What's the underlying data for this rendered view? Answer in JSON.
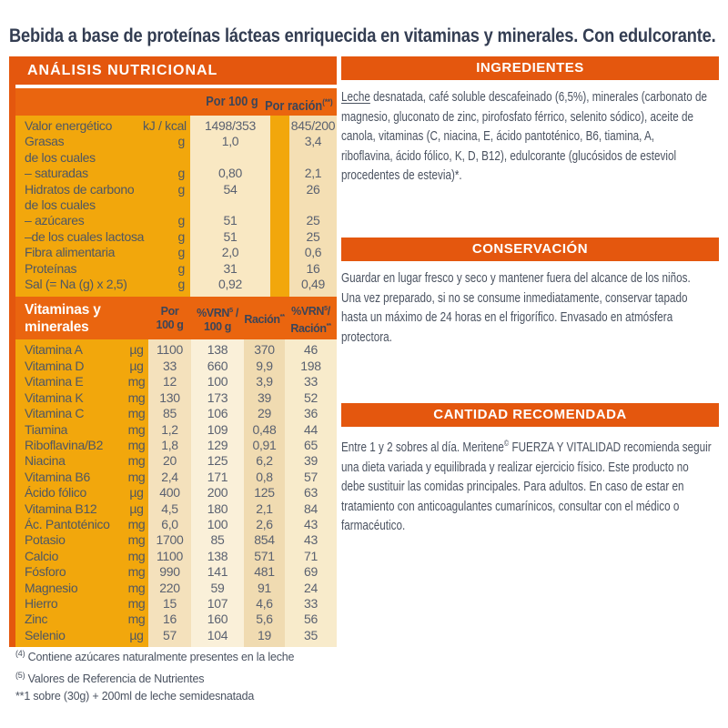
{
  "title": "Bebida a base de proteínas lácteas enriquecida en vitaminas y minerales. Con edulcorante.",
  "colors": {
    "orange": "#E4570E",
    "gold": "#F2A70C",
    "navy": "#3B4559"
  },
  "analisis": {
    "header": "ANÁLISIS NUTRICIONAL",
    "col_per100": "Por 100 g",
    "col_racion": "Por ración",
    "col_racion_sup": "(**)",
    "rows": [
      {
        "label": "Valor energético",
        "unit": "kJ / kcal",
        "per100": "1498/353",
        "racion": "845/200"
      },
      {
        "label": "Grasas",
        "unit": "g",
        "per100": "1,0",
        "racion": "3,4"
      },
      {
        "label": "de los cuales",
        "unit": "",
        "per100": "",
        "racion": ""
      },
      {
        "label": "– saturadas",
        "unit": "g",
        "per100": "0,80",
        "racion": "2,1"
      },
      {
        "label": "Hidratos de carbono",
        "unit": "g",
        "per100": "54",
        "racion": "26"
      },
      {
        "label": "de los cuales",
        "unit": "",
        "per100": "",
        "racion": ""
      },
      {
        "label": "– azúcares",
        "unit": "g",
        "per100": "51",
        "racion": "25"
      },
      {
        "label": "–de los cuales lactosa",
        "unit": "g",
        "per100": "51",
        "racion": "25"
      },
      {
        "label": "Fibra alimentaria",
        "unit": "g",
        "per100": "2,0",
        "racion": "0,6"
      },
      {
        "label": "Proteínas",
        "unit": "g",
        "per100": "31",
        "racion": "16"
      },
      {
        "label": "Sal (= Na (g) x 2,5)",
        "unit": "g",
        "per100": "0,92",
        "racion": "0,49"
      }
    ]
  },
  "vitamins": {
    "header_title_line1": "Vitaminas y",
    "header_title_line2": "minerales",
    "col1_line1": "Por",
    "col1_line2": "100 g",
    "col2_line1_pre": "%VRN",
    "col2_sup": "5",
    "col2_line1_post": " /",
    "col2_line2": "100 g",
    "col3_pre": "Ración",
    "col3_sup": "**",
    "col4_line1_pre": "%VRN",
    "col4_sup": "5",
    "col4_line1_post": "/",
    "col4_line2_pre": "Ración",
    "col4_line2_sup": "**",
    "rows": [
      {
        "label": "Vitamina A",
        "unit": "µg",
        "per100": "1100",
        "vrn100": "138",
        "racion": "370",
        "vrnracion": "46"
      },
      {
        "label": "Vitamina D",
        "unit": "µg",
        "per100": "33",
        "vrn100": "660",
        "racion": "9,9",
        "vrnracion": "198"
      },
      {
        "label": "Vitamina E",
        "unit": "mg",
        "per100": "12",
        "vrn100": "100",
        "racion": "3,9",
        "vrnracion": "33"
      },
      {
        "label": "Vitamina K",
        "unit": "mg",
        "per100": "130",
        "vrn100": "173",
        "racion": "39",
        "vrnracion": "52"
      },
      {
        "label": "Vitamina C",
        "unit": "mg",
        "per100": "85",
        "vrn100": "106",
        "racion": "29",
        "vrnracion": "36"
      },
      {
        "label": "Tiamina",
        "unit": "mg",
        "per100": "1,2",
        "vrn100": "109",
        "racion": "0,48",
        "vrnracion": "44"
      },
      {
        "label": "Riboflavina/B2",
        "unit": "mg",
        "per100": "1,8",
        "vrn100": "129",
        "racion": "0,91",
        "vrnracion": "65"
      },
      {
        "label": "Niacina",
        "unit": "mg",
        "per100": "20",
        "vrn100": "125",
        "racion": "6,2",
        "vrnracion": "39"
      },
      {
        "label": "Vitamina B6",
        "unit": "mg",
        "per100": "2,4",
        "vrn100": "171",
        "racion": "0,8",
        "vrnracion": "57"
      },
      {
        "label": "Ácido fólico",
        "unit": "µg",
        "per100": "400",
        "vrn100": "200",
        "racion": "125",
        "vrnracion": "63"
      },
      {
        "label": "Vitamina B12",
        "unit": "µg",
        "per100": "4,5",
        "vrn100": "180",
        "racion": "2,1",
        "vrnracion": "84"
      },
      {
        "label": "Ác. Pantoténico",
        "unit": "mg",
        "per100": "6,0",
        "vrn100": "100",
        "racion": "2,6",
        "vrnracion": "43"
      },
      {
        "label": "Potasio",
        "unit": "mg",
        "per100": "1700",
        "vrn100": "85",
        "racion": "854",
        "vrnracion": "43"
      },
      {
        "label": "Calcio",
        "unit": "mg",
        "per100": "1100",
        "vrn100": "138",
        "racion": "571",
        "vrnracion": "71"
      },
      {
        "label": "Fósforo",
        "unit": "mg",
        "per100": "990",
        "vrn100": "141",
        "racion": "481",
        "vrnracion": "69"
      },
      {
        "label": "Magnesio",
        "unit": "mg",
        "per100": "220",
        "vrn100": "59",
        "racion": "91",
        "vrnracion": "24"
      },
      {
        "label": "Hierro",
        "unit": "mg",
        "per100": "15",
        "vrn100": "107",
        "racion": "4,6",
        "vrnracion": "33"
      },
      {
        "label": "Zinc",
        "unit": "mg",
        "per100": "16",
        "vrn100": "160",
        "racion": "5,6",
        "vrnracion": "56"
      },
      {
        "label": "Selenio",
        "unit": "µg",
        "per100": "57",
        "vrn100": "104",
        "racion": "19",
        "vrnracion": "35"
      }
    ]
  },
  "footnotes": [
    {
      "sup": "(4)",
      "text": " Contiene azúcares naturalmente presentes en la leche"
    },
    {
      "sup": "(5)",
      "text": " Valores de Referencia de Nutrientes"
    },
    {
      "sup": "",
      "text": "**1 sobre (30g) + 200ml de leche semidesnatada"
    }
  ],
  "ingredientes": {
    "header": "INGREDIENTES",
    "lead_underlined": "Leche",
    "line1_rest": " desnatada, café soluble descafeinado (6,5%), minerales (carbonato de",
    "lines": [
      "magnesio, gluconato de zinc, pirofosfato férrico, selenito sódico), aceite de",
      "canola, vitaminas (C, niacina, E, ácido pantoténico, B6, tiamina, A,",
      "riboflavina, ácido fólico, K, D, B12), edulcorante (glucósidos de esteviol",
      "procedentes de estevia)*."
    ]
  },
  "conservacion": {
    "header": "CONSERVACIÓN",
    "lines": [
      "Guardar en lugar fresco y seco y mantener fuera del alcance de los niños.",
      "Una vez preparado, si no se consume inmediatamente, conservar tapado",
      "hasta un máximo de 24 horas en el frigorífico. Envasado en atmósfera",
      "protectora."
    ]
  },
  "cantidad": {
    "header": "CANTIDAD RECOMENDADA",
    "line1_pre": "Entre 1 y 2 sobres al día. Meritene",
    "line1_sup": "©",
    "line1_post": " FUERZA Y VITALIDAD recomienda seguir",
    "lines": [
      "una dieta variada y equilibrada y realizar ejercicio físico. Este producto no",
      "debe sustituir las comidas principales. Para adultos. En caso de estar en",
      "tratamiento con anticoagulantes cumarínicos, consultar con el médico o",
      "farmacéutico."
    ]
  }
}
